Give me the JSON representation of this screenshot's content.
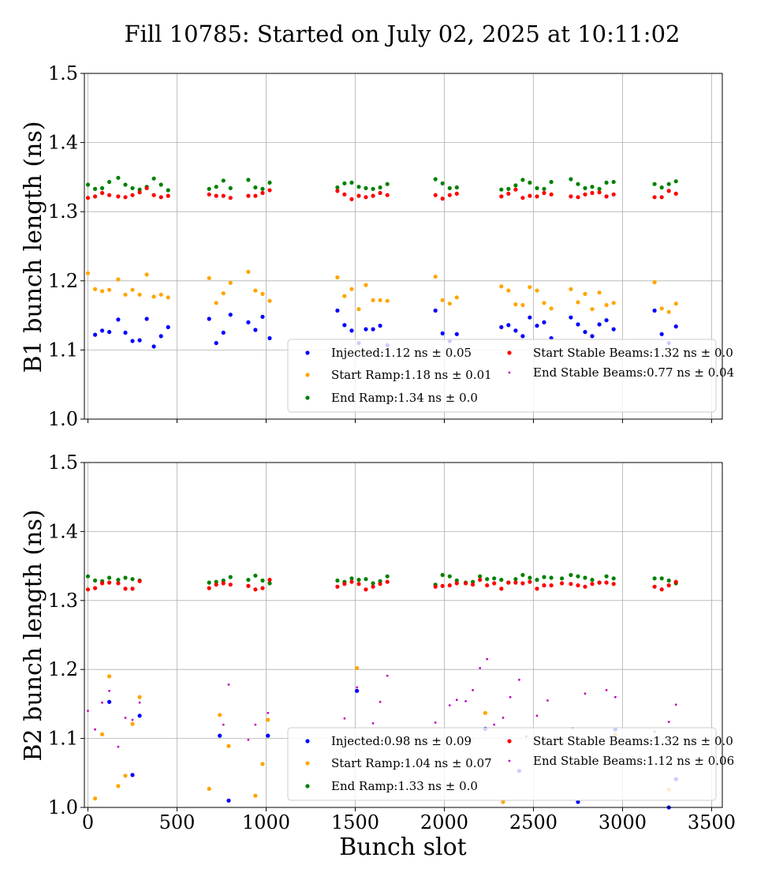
{
  "chart_data": {
    "type": "scatter",
    "title": "Fill 10785: Started on July 02, 2025 at 10:11:02",
    "xlabel": "Bunch slot",
    "x_ticks": [
      0,
      500,
      1000,
      1500,
      2000,
      2500,
      3000,
      3500
    ],
    "xlim": [
      -20,
      3560
    ],
    "grid": true,
    "colors": {
      "Injected": "#0000ff",
      "Start Ramp": "#ffa500",
      "End Ramp": "#008000",
      "Start Stable Beams": "#ff0000",
      "End Stable Beams": "#bf00bf"
    },
    "panels": [
      {
        "ylabel": "B1 bunch length (ns)",
        "ylim": [
          1.0,
          1.5
        ],
        "y_ticks": [
          "1.0",
          "1.1",
          "1.2",
          "1.3",
          "1.4",
          "1.5"
        ],
        "legend_position": "lower-right",
        "legend": [
          "Injected:1.12 ns ± 0.05",
          "Start Ramp:1.18 ns ± 0.01",
          "End Ramp:1.34 ns ± 0.0",
          "Start Stable Beams:1.32 ns ± 0.0",
          "End Stable Beams:0.77 ns ± 0.04"
        ],
        "series": [
          {
            "series": "Injected",
            "x": [
              40,
              80,
              120,
              170,
              210,
              250,
              290,
              330,
              370,
              410,
              450,
              680,
              720,
              760,
              800,
              900,
              940,
              980,
              1020,
              1400,
              1440,
              1480,
              1520,
              1560,
              1600,
              1640,
              1680,
              1950,
              1990,
              2030,
              2070,
              2320,
              2360,
              2400,
              2440,
              2480,
              2520,
              2560,
              2600,
              2710,
              2750,
              2790,
              2830,
              2870,
              2910,
              2950,
              3180,
              3220,
              3260,
              3300
            ],
            "y": [
              1.122,
              1.128,
              1.126,
              1.144,
              1.125,
              1.113,
              1.114,
              1.145,
              1.105,
              1.12,
              1.133,
              1.145,
              1.11,
              1.125,
              1.151,
              1.14,
              1.129,
              1.148,
              1.117,
              1.157,
              1.136,
              1.128,
              1.11,
              1.13,
              1.13,
              1.135,
              1.107,
              1.157,
              1.124,
              1.113,
              1.123,
              1.133,
              1.136,
              1.128,
              1.12,
              1.147,
              1.135,
              1.14,
              1.117,
              1.147,
              1.137,
              1.126,
              1.12,
              1.137,
              1.143,
              1.13,
              1.157,
              1.123,
              1.11,
              1.134
            ]
          },
          {
            "series": "Start Ramp",
            "x": [
              0,
              40,
              80,
              120,
              170,
              210,
              250,
              290,
              330,
              370,
              410,
              450,
              680,
              720,
              760,
              800,
              900,
              940,
              980,
              1020,
              1400,
              1440,
              1480,
              1520,
              1560,
              1600,
              1640,
              1680,
              1950,
              1990,
              2030,
              2070,
              2320,
              2360,
              2400,
              2440,
              2480,
              2520,
              2560,
              2600,
              2710,
              2750,
              2790,
              2830,
              2870,
              2910,
              2950,
              3180,
              3220,
              3260,
              3300
            ],
            "y": [
              1.211,
              1.188,
              1.185,
              1.187,
              1.202,
              1.18,
              1.187,
              1.18,
              1.209,
              1.177,
              1.18,
              1.176,
              1.204,
              1.168,
              1.182,
              1.197,
              1.213,
              1.186,
              1.181,
              1.171,
              1.205,
              1.178,
              1.188,
              1.159,
              1.194,
              1.172,
              1.172,
              1.171,
              1.206,
              1.172,
              1.167,
              1.176,
              1.192,
              1.186,
              1.166,
              1.165,
              1.191,
              1.186,
              1.168,
              1.16,
              1.188,
              1.169,
              1.181,
              1.159,
              1.183,
              1.165,
              1.168,
              1.198,
              1.16,
              1.155,
              1.167
            ]
          },
          {
            "series": "End Ramp",
            "x": [
              0,
              40,
              80,
              120,
              170,
              210,
              250,
              290,
              330,
              370,
              410,
              450,
              680,
              720,
              760,
              800,
              900,
              940,
              980,
              1020,
              1400,
              1440,
              1480,
              1520,
              1560,
              1600,
              1640,
              1680,
              1950,
              1990,
              2030,
              2070,
              2320,
              2360,
              2400,
              2440,
              2480,
              2520,
              2560,
              2600,
              2710,
              2750,
              2790,
              2830,
              2870,
              2910,
              2950,
              3180,
              3220,
              3260,
              3300
            ],
            "y": [
              1.339,
              1.333,
              1.334,
              1.343,
              1.349,
              1.339,
              1.334,
              1.332,
              1.336,
              1.348,
              1.339,
              1.331,
              1.333,
              1.336,
              1.345,
              1.334,
              1.346,
              1.335,
              1.333,
              1.342,
              1.335,
              1.341,
              1.342,
              1.336,
              1.334,
              1.333,
              1.335,
              1.34,
              1.347,
              1.341,
              1.334,
              1.335,
              1.332,
              1.333,
              1.338,
              1.346,
              1.342,
              1.334,
              1.333,
              1.343,
              1.347,
              1.34,
              1.334,
              1.336,
              1.333,
              1.342,
              1.343,
              1.34,
              1.335,
              1.34,
              1.344
            ]
          },
          {
            "series": "Start Stable Beams",
            "x": [
              0,
              40,
              80,
              120,
              170,
              210,
              250,
              290,
              330,
              370,
              410,
              450,
              680,
              720,
              760,
              800,
              900,
              940,
              980,
              1020,
              1400,
              1440,
              1480,
              1520,
              1560,
              1600,
              1640,
              1680,
              1950,
              1990,
              2030,
              2070,
              2320,
              2360,
              2400,
              2440,
              2480,
              2520,
              2560,
              2600,
              2710,
              2750,
              2790,
              2830,
              2870,
              2910,
              2950,
              3180,
              3220,
              3260,
              3300
            ],
            "y": [
              1.32,
              1.322,
              1.327,
              1.324,
              1.322,
              1.321,
              1.324,
              1.328,
              1.334,
              1.324,
              1.321,
              1.323,
              1.325,
              1.323,
              1.323,
              1.32,
              1.323,
              1.323,
              1.327,
              1.331,
              1.33,
              1.325,
              1.318,
              1.323,
              1.321,
              1.323,
              1.327,
              1.324,
              1.324,
              1.319,
              1.324,
              1.326,
              1.322,
              1.326,
              1.332,
              1.32,
              1.323,
              1.322,
              1.327,
              1.325,
              1.322,
              1.321,
              1.325,
              1.327,
              1.328,
              1.322,
              1.325,
              1.321,
              1.321,
              1.33,
              1.326
            ]
          }
        ]
      },
      {
        "ylabel": "B2 bunch length (ns)",
        "ylim": [
          1.0,
          1.5
        ],
        "y_ticks": [
          "1.0",
          "1.1",
          "1.2",
          "1.3",
          "1.4",
          "1.5"
        ],
        "legend_position": "lower-right",
        "legend": [
          "Injected:0.98 ns ± 0.09",
          "Start Ramp:1.04 ns ± 0.07",
          "End Ramp:1.33 ns ± 0.0",
          "Start Stable Beams:1.32 ns ± 0.0",
          "End Stable Beams:1.12 ns ± 0.06"
        ],
        "series": [
          {
            "series": "Injected",
            "x": [
              120,
              250,
              290,
              740,
              790,
              1010,
              1510,
              2230,
              2420,
              2750,
              2960,
              3260,
              3300
            ],
            "y": [
              1.153,
              1.047,
              1.133,
              1.104,
              1.01,
              1.104,
              1.169,
              1.114,
              1.053,
              1.008,
              1.113,
              1.0,
              1.041
            ]
          },
          {
            "series": "Start Ramp",
            "x": [
              40,
              80,
              120,
              170,
              210,
              250,
              290,
              680,
              740,
              790,
              940,
              980,
              1010,
              1510,
              2230,
              2330,
              2960,
              3260
            ],
            "y": [
              1.013,
              1.106,
              1.19,
              1.031,
              1.046,
              1.121,
              1.16,
              1.027,
              1.134,
              1.089,
              1.017,
              1.063,
              1.127,
              1.202,
              1.137,
              1.008,
              1.105,
              1.026
            ]
          },
          {
            "series": "End Ramp",
            "x": [
              0,
              40,
              80,
              120,
              170,
              210,
              250,
              290,
              680,
              720,
              760,
              800,
              900,
              940,
              980,
              1020,
              1400,
              1440,
              1480,
              1520,
              1560,
              1600,
              1640,
              1680,
              1950,
              1990,
              2030,
              2070,
              2120,
              2160,
              2200,
              2240,
              2280,
              2320,
              2360,
              2400,
              2440,
              2480,
              2520,
              2560,
              2600,
              2660,
              2710,
              2750,
              2790,
              2830,
              2870,
              2910,
              2950,
              3180,
              3220,
              3260,
              3300
            ],
            "y": [
              1.335,
              1.329,
              1.328,
              1.333,
              1.33,
              1.333,
              1.331,
              1.329,
              1.326,
              1.327,
              1.329,
              1.334,
              1.33,
              1.336,
              1.329,
              1.325,
              1.329,
              1.327,
              1.332,
              1.33,
              1.331,
              1.325,
              1.328,
              1.335,
              1.323,
              1.337,
              1.335,
              1.329,
              1.326,
              1.327,
              1.335,
              1.331,
              1.332,
              1.33,
              1.326,
              1.331,
              1.337,
              1.333,
              1.33,
              1.334,
              1.333,
              1.332,
              1.337,
              1.335,
              1.333,
              1.33,
              1.326,
              1.335,
              1.332,
              1.332,
              1.332,
              1.329,
              1.325
            ]
          },
          {
            "series": "Start Stable Beams",
            "x": [
              0,
              40,
              80,
              120,
              170,
              210,
              250,
              290,
              680,
              720,
              760,
              800,
              900,
              940,
              980,
              1020,
              1400,
              1440,
              1480,
              1520,
              1560,
              1600,
              1640,
              1680,
              1950,
              1990,
              2030,
              2070,
              2120,
              2160,
              2200,
              2240,
              2280,
              2320,
              2360,
              2400,
              2440,
              2480,
              2520,
              2560,
              2600,
              2660,
              2710,
              2750,
              2790,
              2830,
              2870,
              2910,
              2950,
              3180,
              3220,
              3260,
              3300
            ],
            "y": [
              1.316,
              1.318,
              1.325,
              1.326,
              1.325,
              1.317,
              1.317,
              1.328,
              1.318,
              1.323,
              1.325,
              1.323,
              1.321,
              1.316,
              1.318,
              1.33,
              1.32,
              1.324,
              1.327,
              1.324,
              1.316,
              1.32,
              1.324,
              1.327,
              1.32,
              1.321,
              1.322,
              1.325,
              1.325,
              1.323,
              1.33,
              1.322,
              1.325,
              1.317,
              1.326,
              1.326,
              1.325,
              1.327,
              1.317,
              1.322,
              1.322,
              1.325,
              1.324,
              1.322,
              1.32,
              1.324,
              1.326,
              1.326,
              1.324,
              1.32,
              1.316,
              1.322,
              1.327
            ]
          },
          {
            "series": "End Stable Beams",
            "x": [
              0,
              40,
              80,
              120,
              170,
              210,
              250,
              290,
              760,
              790,
              900,
              940,
              1010,
              1440,
              1510,
              1600,
              1640,
              1680,
              1950,
              2030,
              2070,
              2120,
              2160,
              2200,
              2240,
              2280,
              2330,
              2370,
              2420,
              2460,
              2520,
              2580,
              2720,
              2790,
              2910,
              2960,
              3180,
              3260,
              3300
            ],
            "y": [
              1.14,
              1.113,
              1.152,
              1.169,
              1.088,
              1.13,
              1.127,
              1.152,
              1.12,
              1.178,
              1.098,
              1.12,
              1.137,
              1.129,
              1.174,
              1.122,
              1.153,
              1.191,
              1.123,
              1.148,
              1.156,
              1.154,
              1.17,
              1.202,
              1.215,
              1.12,
              1.13,
              1.16,
              1.185,
              1.103,
              1.133,
              1.155,
              1.115,
              1.165,
              1.17,
              1.16,
              1.11,
              1.124,
              1.149
            ]
          }
        ]
      }
    ]
  }
}
